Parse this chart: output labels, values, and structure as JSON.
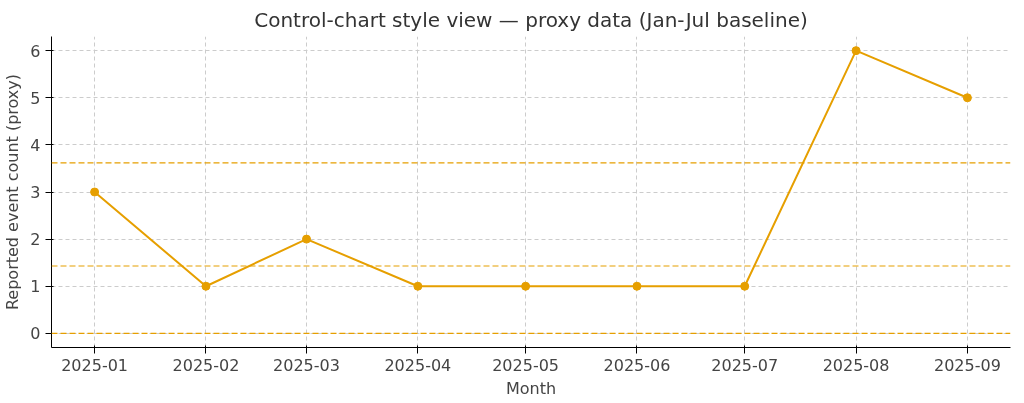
{
  "chart_data": {
    "type": "line",
    "title": "Control-chart style view — proxy data (Jan-Jul baseline)",
    "xlabel": "Month",
    "ylabel": "Reported event count (proxy)",
    "x": [
      "2025-01",
      "2025-02",
      "2025-03",
      "2025-04",
      "2025-05",
      "2025-06",
      "2025-07",
      "2025-08",
      "2025-09"
    ],
    "series": [
      {
        "color": "#e69f00",
        "values": [
          3,
          1,
          2,
          1,
          1,
          1,
          1,
          6,
          5
        ]
      }
    ],
    "xlim": [
      "2024-12-20",
      "2025-09-13"
    ],
    "xticks": [
      "2025-01",
      "2025-02",
      "2025-03",
      "2025-04",
      "2025-05",
      "2025-06",
      "2025-07",
      "2025-08",
      "2025-09"
    ],
    "ylim": [
      -0.3,
      6.3
    ],
    "yticks": [
      0,
      1,
      2,
      3,
      4,
      5,
      6
    ],
    "ref_lines": [
      {
        "axis": "y",
        "value": 3.62,
        "color": "#e69f00",
        "line_style": "dashed"
      },
      {
        "axis": "y",
        "value": 1.43,
        "color": "#e69f00",
        "line_style": "dashed"
      },
      {
        "axis": "y",
        "value": 0,
        "color": "#e69f00",
        "line_style": "dashed"
      }
    ],
    "grid": true,
    "marker": "circle",
    "line_style": "solid"
  }
}
